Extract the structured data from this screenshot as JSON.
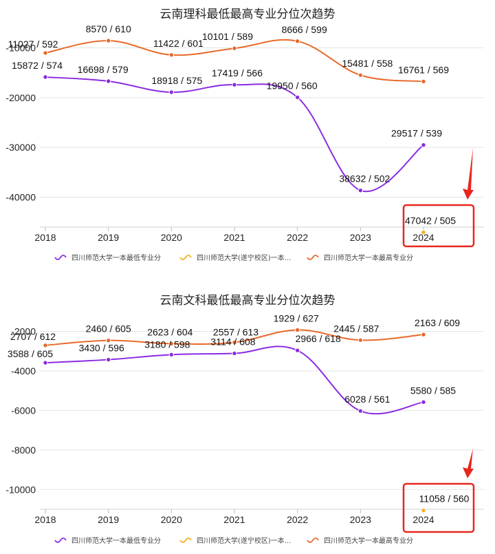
{
  "chart_data": [
    {
      "type": "line",
      "title": "云南理科最低最高专业分位次趋势",
      "x": [
        "2018",
        "2019",
        "2020",
        "2021",
        "2022",
        "2023",
        "2024"
      ],
      "ylim": [
        -46000,
        -8000
      ],
      "yticks": [
        -10000,
        -20000,
        -30000,
        -40000
      ],
      "ytick_labels": [
        "-10000",
        "-20000",
        "-30000",
        "-40000"
      ],
      "grid": true,
      "legend_position": "bottom",
      "series": [
        {
          "name": "四川师范大学一本最低专业分",
          "color": "#8a2be2",
          "values": [
            -15872,
            -16698,
            -18918,
            -17419,
            -19950,
            -38632,
            -29517
          ],
          "labels": [
            "15872 / 574",
            "16698 / 579",
            "18918 / 575",
            "17419 / 566",
            "19950 / 560",
            "38632 / 502",
            "29517 / 539"
          ]
        },
        {
          "name": "四川师范大学(遂宁校区)一本...",
          "color": "#f2b01e",
          "values": [
            null,
            null,
            null,
            null,
            null,
            null,
            -47042
          ],
          "labels": [
            null,
            null,
            null,
            null,
            null,
            null,
            "47042 / 505"
          ]
        },
        {
          "name": "四川师范大学一本最高专业分",
          "color": "#e8692a",
          "values": [
            -11027,
            -8570,
            -11422,
            -10101,
            -8666,
            -15481,
            -16761
          ],
          "labels": [
            "11027 / 592",
            "8570 / 610",
            "11422 / 601",
            "10101 / 589",
            "8666 / 599",
            "15481 / 558",
            "16761 / 569"
          ]
        }
      ]
    },
    {
      "type": "line",
      "title": "云南文科最低最高专业分位次趋势",
      "x": [
        "2018",
        "2019",
        "2020",
        "2021",
        "2022",
        "2023",
        "2024"
      ],
      "ylim": [
        -11000,
        -1600
      ],
      "yticks": [
        -2000,
        -4000,
        -6000,
        -8000,
        -10000
      ],
      "ytick_labels": [
        "-2000",
        "-4000",
        "-6000",
        "-8000",
        "-10000"
      ],
      "grid": true,
      "legend_position": "bottom",
      "series": [
        {
          "name": "四川师范大学一本最低专业分",
          "color": "#8a2be2",
          "values": [
            -3588,
            -3430,
            -3180,
            -3114,
            -2966,
            -6028,
            -5580
          ],
          "labels": [
            "3588 / 605",
            "3430 / 596",
            "3180 / 598",
            "3114 / 608",
            "2966 / 618",
            "6028 / 561",
            "5580 / 585"
          ]
        },
        {
          "name": "四川师范大学(遂宁校区)一本...",
          "color": "#f2b01e",
          "values": [
            null,
            null,
            null,
            null,
            null,
            null,
            -11058
          ],
          "labels": [
            null,
            null,
            null,
            null,
            null,
            null,
            "11058 / 560"
          ]
        },
        {
          "name": "四川师范大学一本最高专业分",
          "color": "#e8692a",
          "values": [
            -2707,
            -2460,
            -2623,
            -2557,
            -1929,
            -2445,
            -2163
          ],
          "labels": [
            "2707 / 612",
            "2460 / 605",
            "2623 / 604",
            "2557 / 613",
            "1929 / 627",
            "2445 / 587",
            "2163 / 609"
          ]
        }
      ]
    }
  ]
}
